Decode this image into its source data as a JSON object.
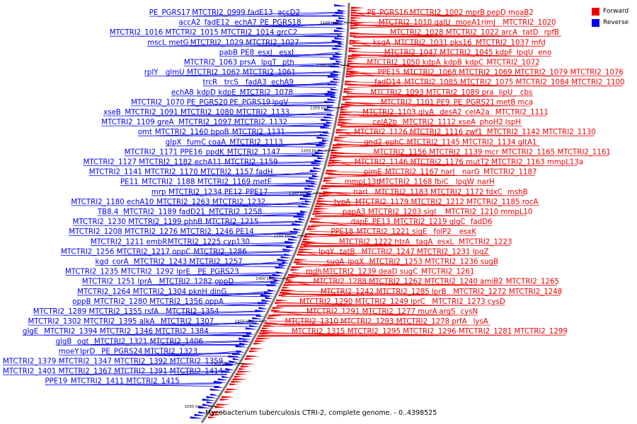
{
  "caption": "Mycobacterium tuberculosis CTRI-2, complete genome. - 0..4398525",
  "legend": [
    {
      "label": "Forward",
      "color": "#ee0000"
    },
    {
      "label": "Reverse",
      "color": "#0000ee"
    }
  ],
  "colors": {
    "forward": "#ee0000",
    "reverse": "#0000ee",
    "backbone": "#777777"
  },
  "scale_labels": [
    "1100 kbp",
    "1150 kbp",
    "1200 kbp",
    "1250 kbp",
    "1300 kbp",
    "1350 kbp",
    "1400 kbp",
    "1450 kbp",
    "1500 kbp",
    "1550 kbp"
  ],
  "reverse_labels": [
    "PE_PGRS17",
    "MTCTRI2_0999",
    "fadE13",
    "accD2",
    "accA2",
    "fadE12",
    "echA7",
    "PE_PGRS18",
    "MTCTRI2_1016",
    "MTCTRI2_1015",
    "MTCTRI2_1014",
    "grcC2",
    "mscL",
    "metG",
    "MTCTRI2_1029",
    "MTCTRI2_1027",
    "pabB",
    "PE8",
    "esxJ",
    "esxI",
    "MTCTRI2_1063",
    "prsA",
    "lpqT",
    "pth",
    "rplY",
    "glmU",
    "MTCTRI2_1062",
    "MTCTRI2_1061",
    "trcR",
    "trcS",
    "fadA3",
    "echA9",
    "echA8",
    "kdpD",
    "kdpE",
    "MTCTRI2_1078",
    "MTCTRI2_1070",
    "PE_PGRS20",
    "PE_PGRS19",
    "lpqV",
    "xseB",
    "MTCTRI2_1091",
    "MTCTRI2_1080",
    "MTCTRI2_1133",
    "MTCTRI2_1109",
    "greA",
    "MTCTRI2_1097",
    "MTCTRI2_1132",
    "omt",
    "MTCTRI2_1160",
    "bpoB",
    "MTCTRI2_1131",
    "glpX",
    "fumC",
    "coaA",
    "MTCTRI2_1113",
    "MTCTRI2_1171",
    "PPE16",
    "ppdK",
    "MTCTRI2_1147",
    "MTCTRI2_1127",
    "MTCTRI2_1182",
    "echA11",
    "MTCTRI2_1159",
    "MTCTRI2_1141",
    "MTCTRI2_1170",
    "MTCTRI2_1157",
    "fadH",
    "PE11",
    "MTCTRI2_1188",
    "MTCTRI2_1169",
    "metE",
    "mrp",
    "MTCTRI2_1234",
    "PE12",
    "PPE17",
    "MTCTRI2_1180",
    "echA10",
    "MTCTRI2_1263",
    "MTCTRI2_1232",
    "TB8.4",
    "MTCTRI2_1189",
    "fadD21",
    "MTCTRI2_1258",
    "MTCTRI2_1230",
    "MTCTRI2_1199",
    "phhB",
    "MTCTRI2_1215",
    "MTCTRI2_1208",
    "MTCTRI2_1276",
    "MTCTRI2_1246",
    "PE14",
    "MTCTRI2_1211",
    "embR",
    "MTCTRI2_1225",
    "cyp130",
    "MTCTRI2_1256",
    "MTCTRI2_1217",
    "oppC",
    "MTCTRI2_1286",
    "kgd",
    "corA",
    "MTCTRI2_1243",
    "MTCTRI2_1257",
    "MTCTRI2_1235",
    "MTCTRI2_1292",
    "lprE",
    "PE_PGRS23",
    "MTCTRI2_1251",
    "lprA",
    "MTCTRI2_1282",
    "oppD",
    "MTCTRI2_1264",
    "MTCTRI2_1304",
    "pknH",
    "dinG",
    "oppB",
    "MTCTRI2_1280",
    "MTCTRI2_1356",
    "oppA",
    "MTCTRI2_1289",
    "MTCTRI2_1355",
    "rsfA",
    "MTCTRI2_1354",
    "MTCTRI2_1302",
    "MTCTRI2_1395",
    "alkA",
    "MTCTRI2_1307",
    "glgE",
    "MTCTRI2_1394",
    "MTCTRI2_1346",
    "MTCTRI2_1384",
    "glgB",
    "ogt",
    "MTCTRI2_1321",
    "MTCTRI2_1406",
    "moeY",
    "lprD",
    "PE_PGRS24",
    "MTCTRI2_1323",
    "MTCTRI2_1379",
    "MTCTRI2_1347",
    "MTCTRI2_1392",
    "MTCTRI2_1359",
    "MTCTRI2_1401",
    "MTCTRI2_1367",
    "MTCTRI2_1391",
    "MTCTRI2_1414",
    "PPE19",
    "MTCTRI2_1411",
    "MTCTRI2_1415"
  ],
  "forward_labels": [
    "PE_PGRS16",
    "MTCTRI2_1002",
    "mprB",
    "pepD",
    "moaB2",
    "MTCTRI2_1010",
    "galU",
    "moeA1",
    "rimJ",
    "MTCTRI2_1020",
    "MTCTRI2_1028",
    "MTCTRI2_1022",
    "arcA",
    "tatD",
    "rpfB",
    "ksgA",
    "MTCTRI2_1031",
    "pks16",
    "MTCTRI2_1037",
    "mfd",
    "MTCTRI2_1047",
    "MTCTRI2_1045",
    "kdpF",
    "lpqU",
    "eno",
    "MTCTRI2_1050",
    "kdpA",
    "kdpB",
    "kdpC",
    "MTCTRI2_1072",
    "PPE15",
    "MTCTRI2_1068",
    "MTCTRI2_1069",
    "MTCTRI2_1079",
    "MTCTRI2_1076",
    "fadD14",
    "MTCTRI2_1085",
    "MTCTRI2_1075",
    "MTCTRI2_1084",
    "MTCTRI2_1100",
    "MTCTRI2_1093",
    "MTCTRI2_1089",
    "pra",
    "lipU",
    "cbs",
    "MTCTRI2_1101",
    "PE9",
    "PE_PGRS21",
    "metB",
    "mca",
    "MTCTRI2_1103",
    "glyA",
    "desA2",
    "celA2a",
    "MTCTRI2_1111",
    "celA2b",
    "MTCTRI2_1112",
    "xseA",
    "phoH2",
    "ispH",
    "MTCTRI2_1126",
    "MTCTRI2_1116",
    "zwf1",
    "MTCTRI2_1142",
    "MTCTRI2_1130",
    "gnd2",
    "ephC",
    "MTCTRI2_1145",
    "MTCTRI2_1134",
    "gltA1",
    "MTCTRI2_1156",
    "MTCTRI2_1139",
    "mcr",
    "MTCTRI2_1165",
    "MTCTRI2_1161",
    "MTCTRI2_1146",
    "MTCTRI2_1176",
    "mutT2",
    "MTCTRI2_1163",
    "mmpL13a",
    "pimE",
    "MTCTRI2_1167",
    "narJ",
    "narG",
    "MTCTRI2_1187",
    "mmpL13b",
    "MTCTRI2_1168",
    "fbiC",
    "lpqW",
    "narH",
    "narI",
    "MTCTRI2_1183",
    "MTCTRI2_1172",
    "fdxC",
    "mshB",
    "typA",
    "MTCTRI2_1179",
    "MTCTRI2_1212",
    "MTCTRI2_1185",
    "rocA",
    "papA3",
    "MTCTRI2_1203",
    "sigI",
    "MTCTRI2_1210",
    "mmpL10",
    "dapE",
    "PE13",
    "MTCTRI2_1219",
    "glgC",
    "fadD6",
    "PPE18",
    "MTCTRI2_1221",
    "sigE",
    "folP2",
    "esxK",
    "MTCTRI2_1222",
    "htrA",
    "tagA",
    "esxL",
    "MTCTRI2_1223",
    "lpqY",
    "tatB",
    "MTCTRI2_1247",
    "MTCTRI2_1231",
    "lpqZ",
    "sugA",
    "lpqX",
    "MTCTRI2_1253",
    "MTCTRI2_1236",
    "sugB",
    "mdh",
    "MTCTRI2_1239",
    "deaD",
    "sugC",
    "MTCTRI2_1261",
    "MTCTRI2_1288",
    "MTCTRI2_1262",
    "MTCTRI2_1240",
    "amiB2",
    "MTCTRI2_1265",
    "MTCTRI2_1242",
    "MTCTRI2_1285",
    "lprB",
    "MTCTRI2_1272",
    "MTCTRI2_1248",
    "MTCTRI2_1290",
    "MTCTRI2_1249",
    "lprC",
    "MTCTRI2_1273",
    "cysD",
    "MTCTRI2_1291",
    "MTCTRI2_1277",
    "murA",
    "argS",
    "cysN",
    "MTCTRI2_1310",
    "MTCTRI2_1293",
    "MTCTRI2_1278",
    "prfA",
    "lysA",
    "MTCTRI2_1315",
    "MTCTRI2_1295",
    "MTCTRI2_1296",
    "MTCTRI2_1281",
    "MTCTRI2_1299"
  ]
}
